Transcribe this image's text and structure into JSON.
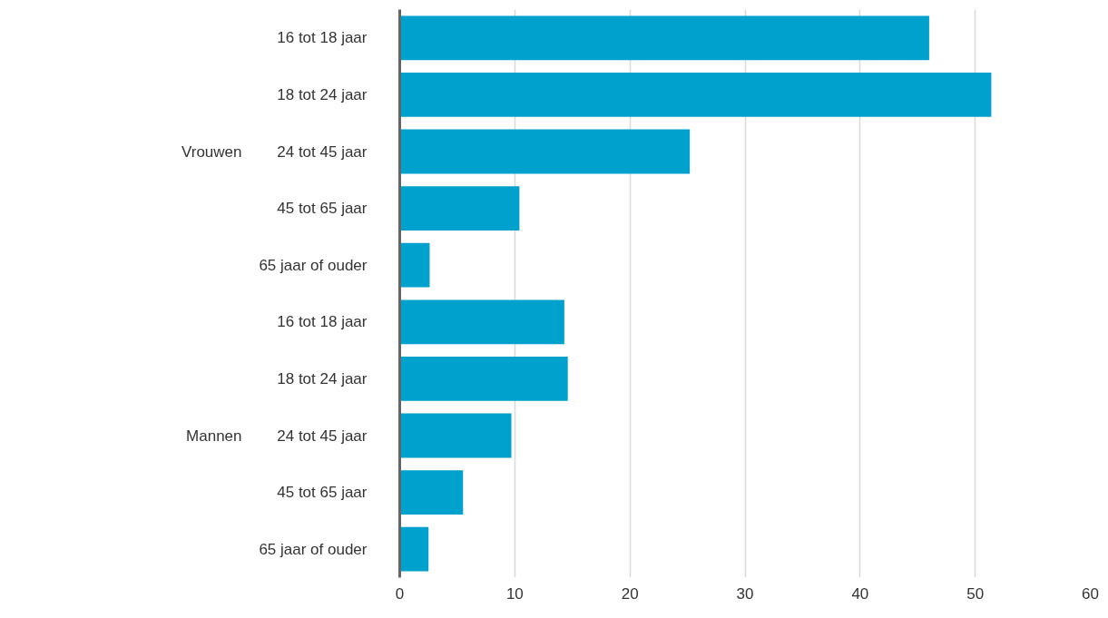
{
  "chart_data": {
    "type": "bar",
    "orientation": "horizontal",
    "categories": [
      "16 tot 18 jaar",
      "18 tot 24 jaar",
      "24 tot 45 jaar",
      "45 tot 65 jaar",
      "65 jaar of ouder",
      "16 tot 18 jaar",
      "18 tot 24 jaar",
      "24 tot 45 jaar",
      "45 tot 65 jaar",
      "65 jaar of ouder"
    ],
    "values": [
      46.0,
      51.4,
      25.2,
      10.4,
      2.6,
      14.3,
      14.6,
      9.7,
      5.5,
      2.5
    ],
    "color": "#00a1cd",
    "annotations": [
      "Vrouwen",
      "Mannen"
    ],
    "xlim": [
      0,
      60
    ],
    "xticks": [
      0,
      10,
      20,
      30,
      40,
      50,
      60
    ],
    "grid": "x"
  }
}
